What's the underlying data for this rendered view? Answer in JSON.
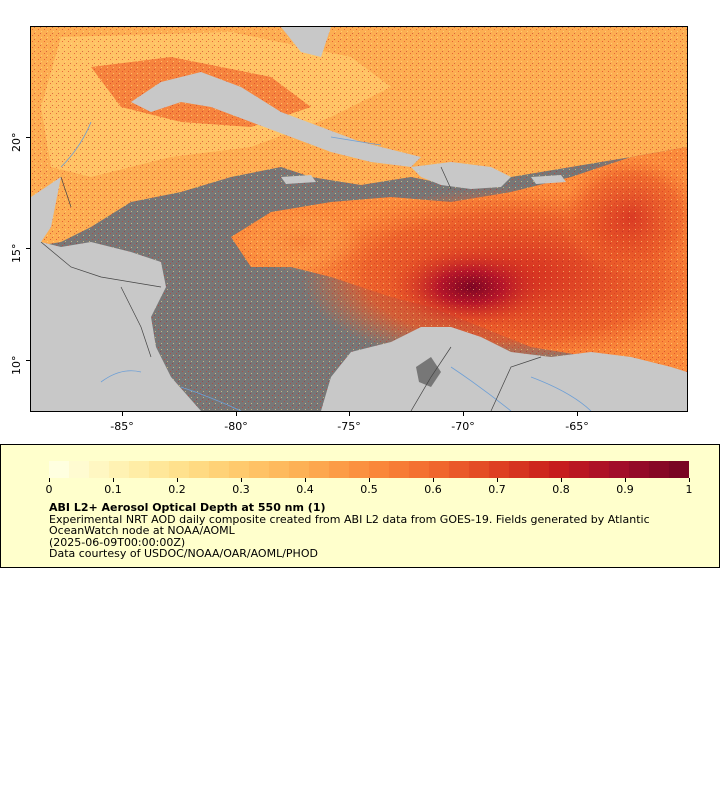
{
  "map": {
    "x_ticks": [
      "-85°",
      "-80°",
      "-75°",
      "-70°",
      "-65°"
    ],
    "y_ticks": [
      "20°",
      "15°",
      "10°"
    ],
    "lon_range": [
      -89,
      -60
    ],
    "lat_range": [
      8,
      25
    ],
    "land_color": "#c8c8c8",
    "nodata_color": "#777777",
    "river_color": "#6d9fd6",
    "border_color": "#444444"
  },
  "colorbar": {
    "labels": [
      "0",
      "0.1",
      "0.2",
      "0.3",
      "0.4",
      "0.5",
      "0.6",
      "0.7",
      "0.8",
      "0.9",
      "1"
    ],
    "min": 0,
    "max": 1,
    "colors": [
      "#ffffe0",
      "#fff2b2",
      "#ffe08a",
      "#ffc86a",
      "#fdae52",
      "#fb8c3c",
      "#f26b2e",
      "#e04422",
      "#c81d1d",
      "#a30d2a",
      "#7a0523"
    ]
  },
  "legend": {
    "title": "ABI L2+ Aerosol Optical Depth at 550 nm (1)",
    "description": "Experimental NRT AOD daily composite created from ABI L2 data from GOES-19. Fields generated by Atlantic OceanWatch node at NOAA/AOML",
    "date": "(2025-06-09T00:00:00Z)",
    "credit": "Data courtesy of USDOC/NOAA/OAR/AOML/PHOD"
  }
}
